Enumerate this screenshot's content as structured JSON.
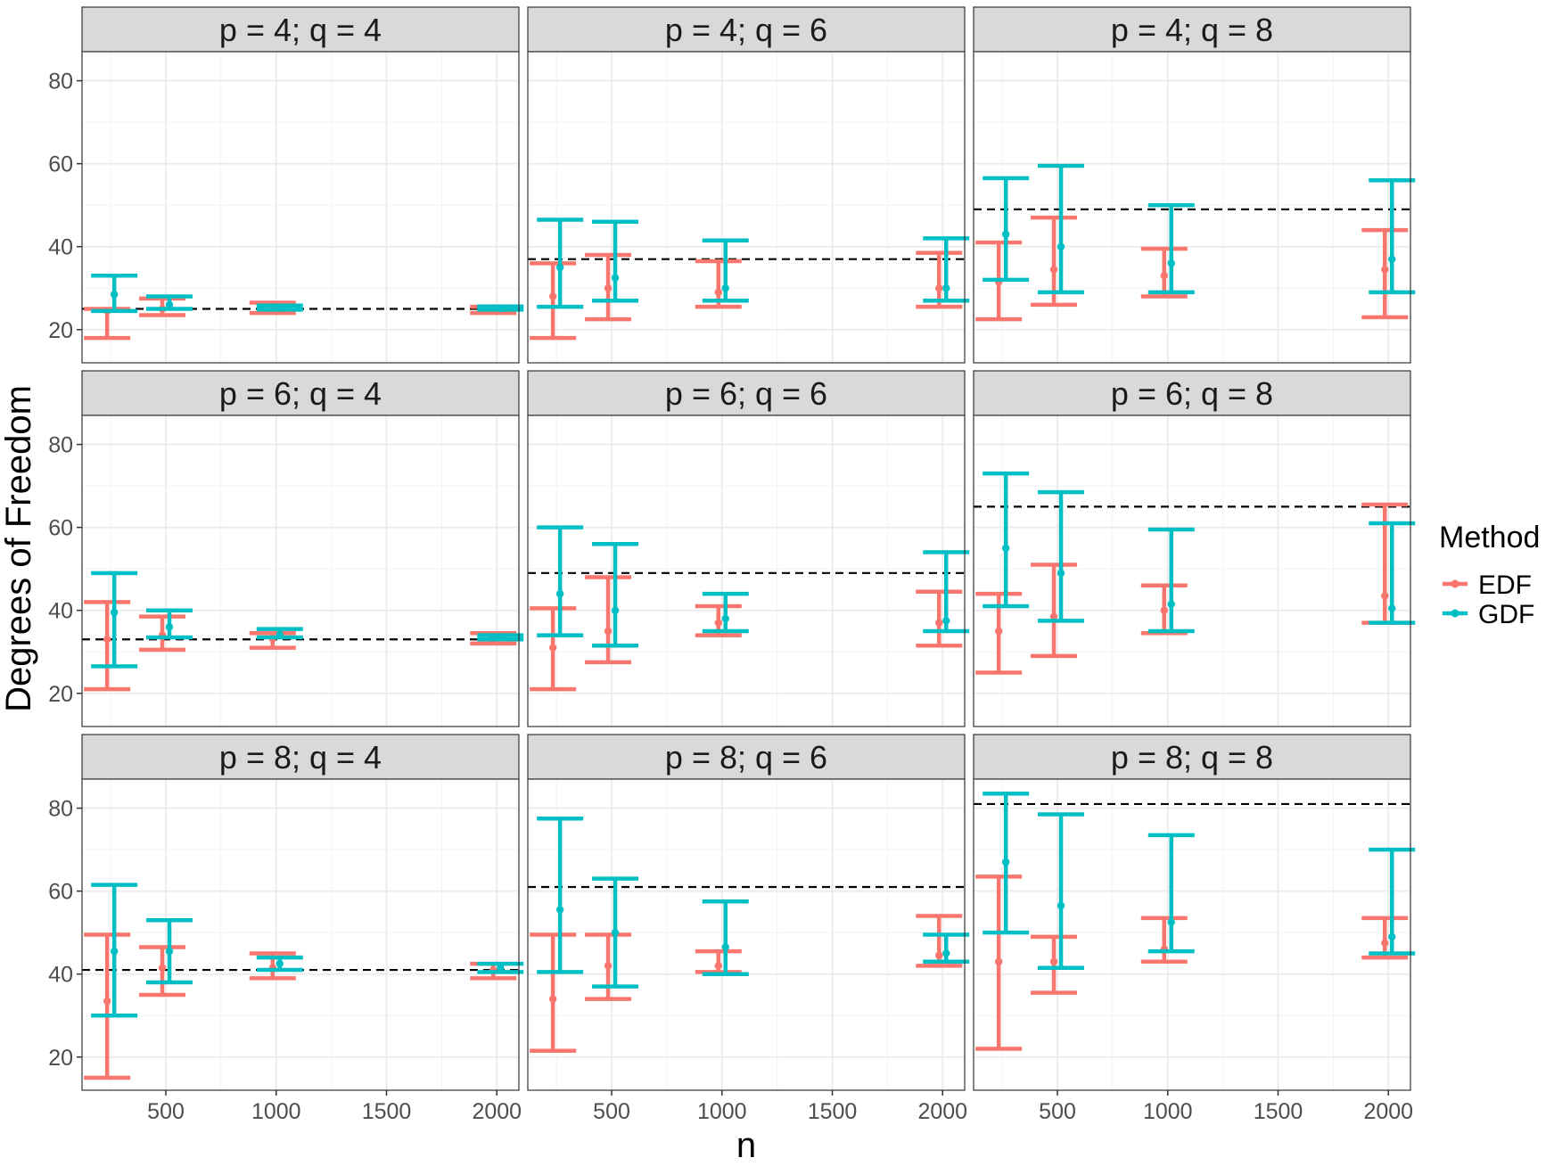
{
  "chart_data": {
    "type": "errorbar",
    "xlabel": "n",
    "ylabel": "Degrees of Freedom",
    "xlim": [
      120,
      2100
    ],
    "ylim": [
      12,
      87
    ],
    "x_ticks": [
      500,
      1000,
      1500,
      2000
    ],
    "y_ticks": [
      20,
      40,
      60,
      80
    ],
    "grid": true,
    "legend": {
      "title": "Method",
      "position": "right",
      "entries": [
        {
          "name": "EDF",
          "color": "#F8766D"
        },
        {
          "name": "GDF",
          "color": "#00BFC4"
        }
      ]
    },
    "panels": [
      {
        "title": "p = 4; q = 4",
        "reference": 25,
        "series": [
          {
            "name": "EDF",
            "points": [
              {
                "n": 250,
                "mean": 24.5,
                "low": 18,
                "high": 25
              },
              {
                "n": 500,
                "mean": 25,
                "low": 23.5,
                "high": 27.5
              },
              {
                "n": 1000,
                "mean": 25,
                "low": 24,
                "high": 26.5
              },
              {
                "n": 2000,
                "mean": 25,
                "low": 24,
                "high": 25.5
              }
            ]
          },
          {
            "name": "GDF",
            "points": [
              {
                "n": 250,
                "mean": 28.5,
                "low": 24.5,
                "high": 33
              },
              {
                "n": 500,
                "mean": 26,
                "low": 25,
                "high": 28
              },
              {
                "n": 1000,
                "mean": 25.2,
                "low": 24.8,
                "high": 25.8
              },
              {
                "n": 2000,
                "mean": 25.1,
                "low": 24.8,
                "high": 25.6
              }
            ]
          }
        ]
      },
      {
        "title": "p = 4; q = 6",
        "reference": 37,
        "series": [
          {
            "name": "EDF",
            "points": [
              {
                "n": 250,
                "mean": 28,
                "low": 18,
                "high": 36
              },
              {
                "n": 500,
                "mean": 30,
                "low": 22.5,
                "high": 38
              },
              {
                "n": 1000,
                "mean": 29,
                "low": 25.5,
                "high": 36.5
              },
              {
                "n": 2000,
                "mean": 30,
                "low": 25.5,
                "high": 38.5
              }
            ]
          },
          {
            "name": "GDF",
            "points": [
              {
                "n": 250,
                "mean": 35,
                "low": 25.5,
                "high": 46.5
              },
              {
                "n": 500,
                "mean": 32.5,
                "low": 27,
                "high": 46
              },
              {
                "n": 1000,
                "mean": 30,
                "low": 27,
                "high": 41.5
              },
              {
                "n": 2000,
                "mean": 30,
                "low": 27,
                "high": 42
              }
            ]
          }
        ]
      },
      {
        "title": "p = 4; q = 8",
        "reference": 49,
        "series": [
          {
            "name": "EDF",
            "points": [
              {
                "n": 250,
                "mean": 31.5,
                "low": 22.5,
                "high": 41
              },
              {
                "n": 500,
                "mean": 34.5,
                "low": 26,
                "high": 47
              },
              {
                "n": 1000,
                "mean": 33,
                "low": 28,
                "high": 39.5
              },
              {
                "n": 2000,
                "mean": 34.5,
                "low": 23,
                "high": 44
              }
            ]
          },
          {
            "name": "GDF",
            "points": [
              {
                "n": 250,
                "mean": 43,
                "low": 32,
                "high": 56.5
              },
              {
                "n": 500,
                "mean": 40,
                "low": 29,
                "high": 59.5
              },
              {
                "n": 1000,
                "mean": 36,
                "low": 29,
                "high": 50
              },
              {
                "n": 2000,
                "mean": 37,
                "low": 29,
                "high": 56
              }
            ]
          }
        ]
      },
      {
        "title": "p = 6; q = 4",
        "reference": 33,
        "series": [
          {
            "name": "EDF",
            "points": [
              {
                "n": 250,
                "mean": 33,
                "low": 21,
                "high": 42
              },
              {
                "n": 500,
                "mean": 34,
                "low": 30.5,
                "high": 38.5
              },
              {
                "n": 1000,
                "mean": 33.2,
                "low": 31,
                "high": 34.5
              },
              {
                "n": 2000,
                "mean": 33,
                "low": 32,
                "high": 34.5
              }
            ]
          },
          {
            "name": "GDF",
            "points": [
              {
                "n": 250,
                "mean": 39.5,
                "low": 26.5,
                "high": 49
              },
              {
                "n": 500,
                "mean": 36,
                "low": 33.5,
                "high": 40
              },
              {
                "n": 1000,
                "mean": 34.2,
                "low": 33.5,
                "high": 35.5
              },
              {
                "n": 2000,
                "mean": 33.5,
                "low": 33,
                "high": 34
              }
            ]
          }
        ]
      },
      {
        "title": "p = 6; q = 6",
        "reference": 49,
        "series": [
          {
            "name": "EDF",
            "points": [
              {
                "n": 250,
                "mean": 31,
                "low": 21,
                "high": 40.5
              },
              {
                "n": 500,
                "mean": 35,
                "low": 27.5,
                "high": 48
              },
              {
                "n": 1000,
                "mean": 37,
                "low": 34,
                "high": 41
              },
              {
                "n": 2000,
                "mean": 37,
                "low": 31.5,
                "high": 44.5
              }
            ]
          },
          {
            "name": "GDF",
            "points": [
              {
                "n": 250,
                "mean": 44,
                "low": 34,
                "high": 60
              },
              {
                "n": 500,
                "mean": 40,
                "low": 31.5,
                "high": 56
              },
              {
                "n": 1000,
                "mean": 38,
                "low": 35,
                "high": 44
              },
              {
                "n": 2000,
                "mean": 37.5,
                "low": 35,
                "high": 54
              }
            ]
          }
        ]
      },
      {
        "title": "p = 6; q = 8",
        "reference": 65,
        "series": [
          {
            "name": "EDF",
            "points": [
              {
                "n": 250,
                "mean": 35,
                "low": 25,
                "high": 44
              },
              {
                "n": 500,
                "mean": 38.5,
                "low": 29,
                "high": 51
              },
              {
                "n": 1000,
                "mean": 40,
                "low": 34.5,
                "high": 46
              },
              {
                "n": 2000,
                "mean": 43.5,
                "low": 37,
                "high": 65.5
              }
            ]
          },
          {
            "name": "GDF",
            "points": [
              {
                "n": 250,
                "mean": 55,
                "low": 41,
                "high": 73
              },
              {
                "n": 500,
                "mean": 49,
                "low": 37.5,
                "high": 68.5
              },
              {
                "n": 1000,
                "mean": 41.5,
                "low": 35,
                "high": 59.5
              },
              {
                "n": 2000,
                "mean": 40.5,
                "low": 37,
                "high": 61
              }
            ]
          }
        ]
      },
      {
        "title": "p = 8; q = 4",
        "reference": 41,
        "series": [
          {
            "name": "EDF",
            "points": [
              {
                "n": 250,
                "mean": 33.5,
                "low": 15,
                "high": 49.5
              },
              {
                "n": 500,
                "mean": 41.5,
                "low": 35,
                "high": 46.5
              },
              {
                "n": 1000,
                "mean": 41.5,
                "low": 39,
                "high": 45
              },
              {
                "n": 2000,
                "mean": 41,
                "low": 39,
                "high": 42.5
              }
            ]
          },
          {
            "name": "GDF",
            "points": [
              {
                "n": 250,
                "mean": 45.5,
                "low": 30,
                "high": 61.5
              },
              {
                "n": 500,
                "mean": 45.5,
                "low": 38,
                "high": 53
              },
              {
                "n": 1000,
                "mean": 42.5,
                "low": 41,
                "high": 44
              },
              {
                "n": 2000,
                "mean": 41.5,
                "low": 40.5,
                "high": 42.5
              }
            ]
          }
        ]
      },
      {
        "title": "p = 8; q = 6",
        "reference": 61,
        "series": [
          {
            "name": "EDF",
            "points": [
              {
                "n": 250,
                "mean": 34,
                "low": 21.5,
                "high": 49.5
              },
              {
                "n": 500,
                "mean": 42,
                "low": 34,
                "high": 49.5
              },
              {
                "n": 1000,
                "mean": 42,
                "low": 40.5,
                "high": 45.5
              },
              {
                "n": 2000,
                "mean": 44.5,
                "low": 42,
                "high": 54
              }
            ]
          },
          {
            "name": "GDF",
            "points": [
              {
                "n": 250,
                "mean": 55.5,
                "low": 40.5,
                "high": 77.5
              },
              {
                "n": 500,
                "mean": 50,
                "low": 37,
                "high": 63
              },
              {
                "n": 1000,
                "mean": 46.5,
                "low": 40,
                "high": 57.5
              },
              {
                "n": 2000,
                "mean": 45,
                "low": 43,
                "high": 49.5
              }
            ]
          }
        ]
      },
      {
        "title": "p = 8; q = 8",
        "reference": 81,
        "series": [
          {
            "name": "EDF",
            "points": [
              {
                "n": 250,
                "mean": 43,
                "low": 22,
                "high": 63.5
              },
              {
                "n": 500,
                "mean": 43,
                "low": 35.5,
                "high": 49
              },
              {
                "n": 1000,
                "mean": 46,
                "low": 43,
                "high": 53.5
              },
              {
                "n": 2000,
                "mean": 47.5,
                "low": 44,
                "high": 53.5
              }
            ]
          },
          {
            "name": "GDF",
            "points": [
              {
                "n": 250,
                "mean": 67,
                "low": 50,
                "high": 83.5
              },
              {
                "n": 500,
                "mean": 56.5,
                "low": 41.5,
                "high": 78.5
              },
              {
                "n": 1000,
                "mean": 52.5,
                "low": 45.5,
                "high": 73.5
              },
              {
                "n": 2000,
                "mean": 49,
                "low": 45,
                "high": 70
              }
            ]
          }
        ]
      }
    ]
  }
}
